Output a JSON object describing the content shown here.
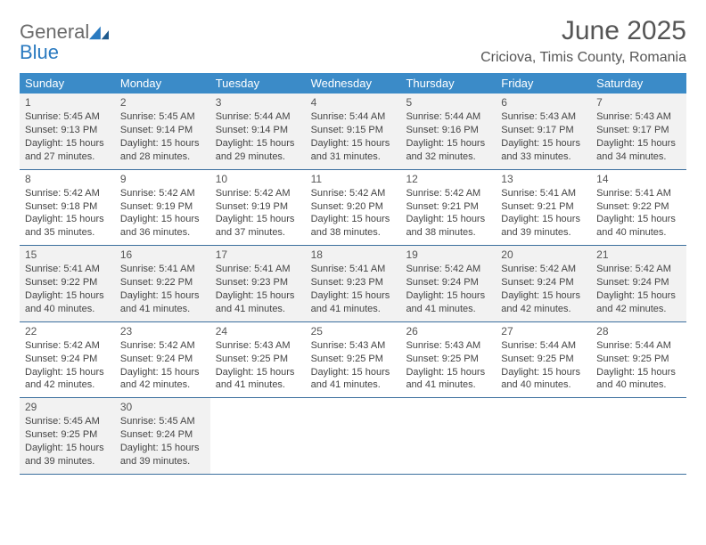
{
  "logo": {
    "text1": "General",
    "text2": "Blue"
  },
  "title": "June 2025",
  "location": "Criciova, Timis County, Romania",
  "header_color": "#3b8bc8",
  "divider_color": "#3b6f9e",
  "alt_row_bg": "#f2f2f2",
  "weekdays": [
    "Sunday",
    "Monday",
    "Tuesday",
    "Wednesday",
    "Thursday",
    "Friday",
    "Saturday"
  ],
  "weeks": [
    {
      "alt": true,
      "days": [
        {
          "num": "1",
          "sunrise": "5:45 AM",
          "sunset": "9:13 PM",
          "daylight": "15 hours and 27 minutes."
        },
        {
          "num": "2",
          "sunrise": "5:45 AM",
          "sunset": "9:14 PM",
          "daylight": "15 hours and 28 minutes."
        },
        {
          "num": "3",
          "sunrise": "5:44 AM",
          "sunset": "9:14 PM",
          "daylight": "15 hours and 29 minutes."
        },
        {
          "num": "4",
          "sunrise": "5:44 AM",
          "sunset": "9:15 PM",
          "daylight": "15 hours and 31 minutes."
        },
        {
          "num": "5",
          "sunrise": "5:44 AM",
          "sunset": "9:16 PM",
          "daylight": "15 hours and 32 minutes."
        },
        {
          "num": "6",
          "sunrise": "5:43 AM",
          "sunset": "9:17 PM",
          "daylight": "15 hours and 33 minutes."
        },
        {
          "num": "7",
          "sunrise": "5:43 AM",
          "sunset": "9:17 PM",
          "daylight": "15 hours and 34 minutes."
        }
      ]
    },
    {
      "alt": false,
      "days": [
        {
          "num": "8",
          "sunrise": "5:42 AM",
          "sunset": "9:18 PM",
          "daylight": "15 hours and 35 minutes."
        },
        {
          "num": "9",
          "sunrise": "5:42 AM",
          "sunset": "9:19 PM",
          "daylight": "15 hours and 36 minutes."
        },
        {
          "num": "10",
          "sunrise": "5:42 AM",
          "sunset": "9:19 PM",
          "daylight": "15 hours and 37 minutes."
        },
        {
          "num": "11",
          "sunrise": "5:42 AM",
          "sunset": "9:20 PM",
          "daylight": "15 hours and 38 minutes."
        },
        {
          "num": "12",
          "sunrise": "5:42 AM",
          "sunset": "9:21 PM",
          "daylight": "15 hours and 38 minutes."
        },
        {
          "num": "13",
          "sunrise": "5:41 AM",
          "sunset": "9:21 PM",
          "daylight": "15 hours and 39 minutes."
        },
        {
          "num": "14",
          "sunrise": "5:41 AM",
          "sunset": "9:22 PM",
          "daylight": "15 hours and 40 minutes."
        }
      ]
    },
    {
      "alt": true,
      "days": [
        {
          "num": "15",
          "sunrise": "5:41 AM",
          "sunset": "9:22 PM",
          "daylight": "15 hours and 40 minutes."
        },
        {
          "num": "16",
          "sunrise": "5:41 AM",
          "sunset": "9:22 PM",
          "daylight": "15 hours and 41 minutes."
        },
        {
          "num": "17",
          "sunrise": "5:41 AM",
          "sunset": "9:23 PM",
          "daylight": "15 hours and 41 minutes."
        },
        {
          "num": "18",
          "sunrise": "5:41 AM",
          "sunset": "9:23 PM",
          "daylight": "15 hours and 41 minutes."
        },
        {
          "num": "19",
          "sunrise": "5:42 AM",
          "sunset": "9:24 PM",
          "daylight": "15 hours and 41 minutes."
        },
        {
          "num": "20",
          "sunrise": "5:42 AM",
          "sunset": "9:24 PM",
          "daylight": "15 hours and 42 minutes."
        },
        {
          "num": "21",
          "sunrise": "5:42 AM",
          "sunset": "9:24 PM",
          "daylight": "15 hours and 42 minutes."
        }
      ]
    },
    {
      "alt": false,
      "days": [
        {
          "num": "22",
          "sunrise": "5:42 AM",
          "sunset": "9:24 PM",
          "daylight": "15 hours and 42 minutes."
        },
        {
          "num": "23",
          "sunrise": "5:42 AM",
          "sunset": "9:24 PM",
          "daylight": "15 hours and 42 minutes."
        },
        {
          "num": "24",
          "sunrise": "5:43 AM",
          "sunset": "9:25 PM",
          "daylight": "15 hours and 41 minutes."
        },
        {
          "num": "25",
          "sunrise": "5:43 AM",
          "sunset": "9:25 PM",
          "daylight": "15 hours and 41 minutes."
        },
        {
          "num": "26",
          "sunrise": "5:43 AM",
          "sunset": "9:25 PM",
          "daylight": "15 hours and 41 minutes."
        },
        {
          "num": "27",
          "sunrise": "5:44 AM",
          "sunset": "9:25 PM",
          "daylight": "15 hours and 40 minutes."
        },
        {
          "num": "28",
          "sunrise": "5:44 AM",
          "sunset": "9:25 PM",
          "daylight": "15 hours and 40 minutes."
        }
      ]
    },
    {
      "alt": true,
      "days": [
        {
          "num": "29",
          "sunrise": "5:45 AM",
          "sunset": "9:25 PM",
          "daylight": "15 hours and 39 minutes."
        },
        {
          "num": "30",
          "sunrise": "5:45 AM",
          "sunset": "9:24 PM",
          "daylight": "15 hours and 39 minutes."
        },
        null,
        null,
        null,
        null,
        null
      ]
    }
  ],
  "labels": {
    "sunrise": "Sunrise:",
    "sunset": "Sunset:",
    "daylight": "Daylight:"
  }
}
